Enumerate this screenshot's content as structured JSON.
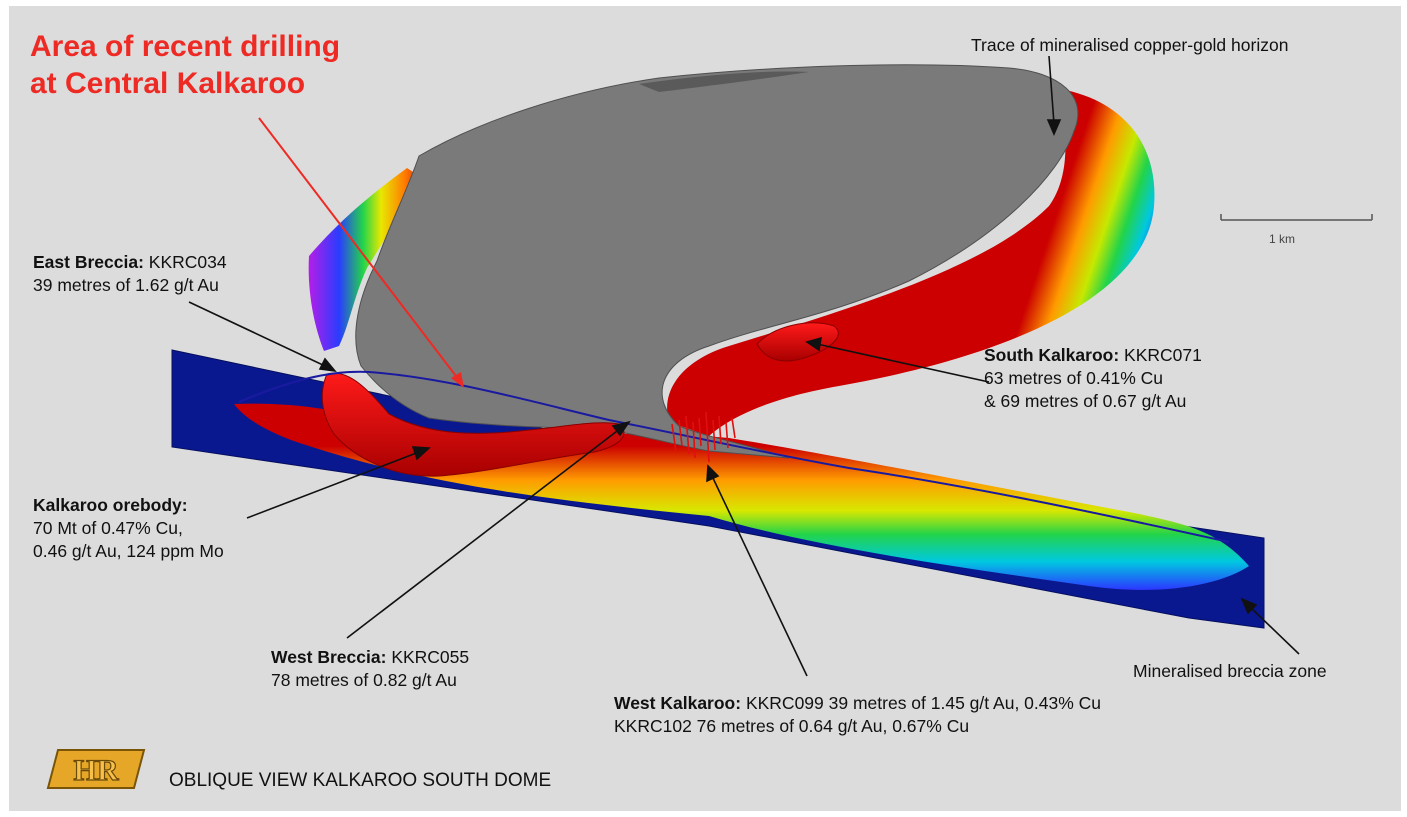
{
  "title": {
    "line1": "Area of recent drilling",
    "line2": "at Central Kalkaroo"
  },
  "labels": {
    "trace": "Trace of mineralised copper-gold horizon",
    "east_breccia": {
      "name": "East Breccia:",
      "hole": "KKRC034",
      "result": "39 metres of 1.62 g/t Au"
    },
    "south_kalkaroo": {
      "name": "South Kalkaroo:",
      "hole": "KKRC071",
      "result1": "63 metres of 0.41% Cu",
      "result2": "& 69 metres of 0.67 g/t Au"
    },
    "orebody": {
      "name": "Kalkaroo orebody:",
      "line1": "70 Mt of 0.47% Cu,",
      "line2": "0.46 g/t Au, 124 ppm Mo"
    },
    "west_breccia": {
      "name": "West Breccia:",
      "hole": "KKRC055",
      "result": "78 metres of 0.82 g/t Au"
    },
    "west_kalkaroo": {
      "name": "West Kalkaroo:",
      "line1": "KKRC099 39 metres of 1.45 g/t Au, 0.43% Cu",
      "line2": "KKRC102 76 metres of 0.64 g/t Au, 0.67% Cu"
    },
    "breccia_zone": "Mineralised breccia zone"
  },
  "scale": {
    "label": "1 km"
  },
  "logo": {
    "text": "HR"
  },
  "footer": {
    "caption": "OBLIQUE VIEW KALKAROO SOUTH DOME"
  },
  "colors": {
    "title_red": "#ee2a24",
    "dome_grey": "#7a7a7a",
    "breccia_blue": "#0a1890",
    "orebody_red": "#cc0000",
    "logo_gold": "#e6a628"
  }
}
